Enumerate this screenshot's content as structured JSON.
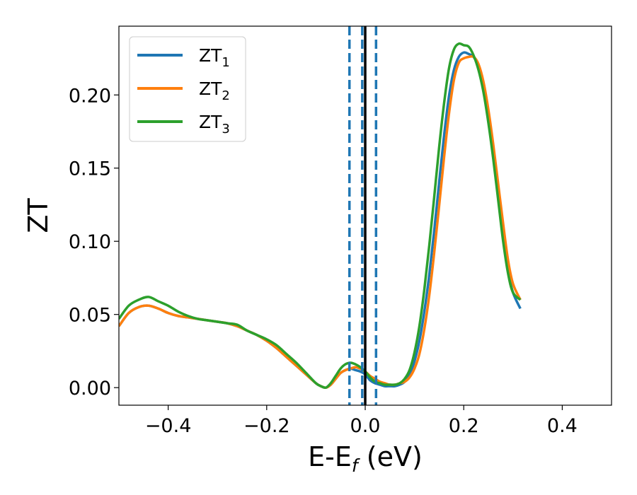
{
  "chart_data": {
    "type": "line",
    "xlabel": {
      "main": "E-E",
      "sub": "f",
      "unit": " (eV)"
    },
    "ylabel": "ZT",
    "xlim": [
      -0.5,
      0.5
    ],
    "ylim": [
      -0.012,
      0.247
    ],
    "xticks": [
      -0.4,
      -0.2,
      0.0,
      0.2,
      0.4
    ],
    "xtick_labels": [
      "−0.4",
      "−0.2",
      "0.0",
      "0.2",
      "0.4"
    ],
    "yticks": [
      0.0,
      0.05,
      0.1,
      0.15,
      0.2
    ],
    "ytick_labels": [
      "0.00",
      "0.05",
      "0.10",
      "0.15",
      "0.20"
    ],
    "grid": false,
    "legend_position": "top-left",
    "vlines": [
      {
        "x": -0.032,
        "style": "dashed",
        "color": "#1f77b4"
      },
      {
        "x": -0.006,
        "style": "dashed",
        "color": "#1f77b4"
      },
      {
        "x": 0.022,
        "style": "dashed",
        "color": "#1f77b4"
      },
      {
        "x": 0.0,
        "style": "solid",
        "color": "#000000"
      }
    ],
    "series": [
      {
        "name": "ZT",
        "sub": "1",
        "color": "#1f77b4",
        "x": [
          -0.5,
          -0.48,
          -0.46,
          -0.44,
          -0.42,
          -0.4,
          -0.38,
          -0.36,
          -0.34,
          -0.32,
          -0.3,
          -0.28,
          -0.26,
          -0.24,
          -0.22,
          -0.2,
          -0.18,
          -0.16,
          -0.14,
          -0.12,
          -0.1,
          -0.09,
          -0.08,
          -0.07,
          -0.06,
          -0.05,
          -0.04,
          -0.03,
          -0.02,
          -0.01,
          0.0,
          0.01,
          0.02,
          0.03,
          0.04,
          0.05,
          0.06,
          0.07,
          0.08,
          0.09,
          0.1,
          0.11,
          0.12,
          0.13,
          0.14,
          0.15,
          0.16,
          0.17,
          0.18,
          0.19,
          0.2,
          0.21,
          0.22,
          0.23,
          0.24,
          0.25,
          0.26,
          0.27,
          0.28,
          0.29,
          0.3,
          0.315
        ],
        "y": [
          0.042,
          0.051,
          0.055,
          0.056,
          0.054,
          0.051,
          0.049,
          0.048,
          0.047,
          0.046,
          0.045,
          0.044,
          0.042,
          0.039,
          0.036,
          0.032,
          0.027,
          0.021,
          0.015,
          0.009,
          0.003,
          0.001,
          0.0,
          0.002,
          0.006,
          0.01,
          0.012,
          0.013,
          0.012,
          0.011,
          0.009,
          0.005,
          0.003,
          0.002,
          0.001,
          0.001,
          0.001,
          0.002,
          0.004,
          0.009,
          0.018,
          0.032,
          0.052,
          0.077,
          0.107,
          0.14,
          0.172,
          0.199,
          0.217,
          0.226,
          0.229,
          0.228,
          0.226,
          0.219,
          0.205,
          0.185,
          0.16,
          0.132,
          0.105,
          0.08,
          0.065,
          0.054
        ]
      },
      {
        "name": "ZT",
        "sub": "2",
        "color": "#ff7f0e",
        "x": [
          -0.5,
          -0.48,
          -0.46,
          -0.44,
          -0.42,
          -0.4,
          -0.38,
          -0.36,
          -0.34,
          -0.32,
          -0.3,
          -0.28,
          -0.26,
          -0.24,
          -0.22,
          -0.2,
          -0.18,
          -0.16,
          -0.14,
          -0.12,
          -0.1,
          -0.09,
          -0.08,
          -0.07,
          -0.06,
          -0.05,
          -0.04,
          -0.03,
          -0.02,
          -0.01,
          0.0,
          0.01,
          0.02,
          0.03,
          0.04,
          0.05,
          0.06,
          0.07,
          0.08,
          0.09,
          0.1,
          0.11,
          0.12,
          0.13,
          0.14,
          0.15,
          0.16,
          0.17,
          0.18,
          0.19,
          0.2,
          0.21,
          0.22,
          0.23,
          0.24,
          0.25,
          0.26,
          0.27,
          0.28,
          0.29,
          0.3,
          0.315
        ],
        "y": [
          0.042,
          0.051,
          0.055,
          0.056,
          0.054,
          0.051,
          0.049,
          0.048,
          0.047,
          0.046,
          0.045,
          0.044,
          0.042,
          0.039,
          0.036,
          0.032,
          0.027,
          0.021,
          0.015,
          0.009,
          0.003,
          0.001,
          0.0,
          0.002,
          0.006,
          0.01,
          0.012,
          0.013,
          0.014,
          0.013,
          0.011,
          0.008,
          0.006,
          0.004,
          0.003,
          0.002,
          0.002,
          0.003,
          0.004,
          0.007,
          0.013,
          0.023,
          0.04,
          0.063,
          0.092,
          0.124,
          0.157,
          0.187,
          0.21,
          0.222,
          0.225,
          0.226,
          0.226,
          0.221,
          0.209,
          0.19,
          0.166,
          0.139,
          0.112,
          0.087,
          0.071,
          0.06
        ]
      },
      {
        "name": "ZT",
        "sub": "3",
        "color": "#2ca02c",
        "x": [
          -0.5,
          -0.48,
          -0.46,
          -0.44,
          -0.42,
          -0.4,
          -0.38,
          -0.36,
          -0.34,
          -0.32,
          -0.3,
          -0.28,
          -0.26,
          -0.24,
          -0.22,
          -0.2,
          -0.18,
          -0.16,
          -0.14,
          -0.12,
          -0.1,
          -0.09,
          -0.08,
          -0.07,
          -0.06,
          -0.05,
          -0.04,
          -0.03,
          -0.02,
          -0.01,
          0.0,
          0.01,
          0.02,
          0.03,
          0.04,
          0.05,
          0.06,
          0.07,
          0.08,
          0.09,
          0.1,
          0.11,
          0.12,
          0.13,
          0.14,
          0.15,
          0.16,
          0.17,
          0.18,
          0.19,
          0.2,
          0.21,
          0.22,
          0.23,
          0.24,
          0.25,
          0.26,
          0.27,
          0.28,
          0.29,
          0.3,
          0.315
        ],
        "y": [
          0.047,
          0.056,
          0.06,
          0.062,
          0.059,
          0.056,
          0.052,
          0.049,
          0.047,
          0.046,
          0.045,
          0.044,
          0.043,
          0.039,
          0.036,
          0.033,
          0.029,
          0.023,
          0.017,
          0.01,
          0.003,
          0.001,
          0.0,
          0.003,
          0.008,
          0.013,
          0.016,
          0.017,
          0.016,
          0.014,
          0.011,
          0.007,
          0.004,
          0.003,
          0.002,
          0.002,
          0.002,
          0.003,
          0.006,
          0.012,
          0.024,
          0.042,
          0.067,
          0.097,
          0.13,
          0.164,
          0.194,
          0.218,
          0.231,
          0.235,
          0.234,
          0.233,
          0.227,
          0.217,
          0.202,
          0.181,
          0.156,
          0.128,
          0.1,
          0.078,
          0.065,
          0.06
        ]
      }
    ]
  }
}
